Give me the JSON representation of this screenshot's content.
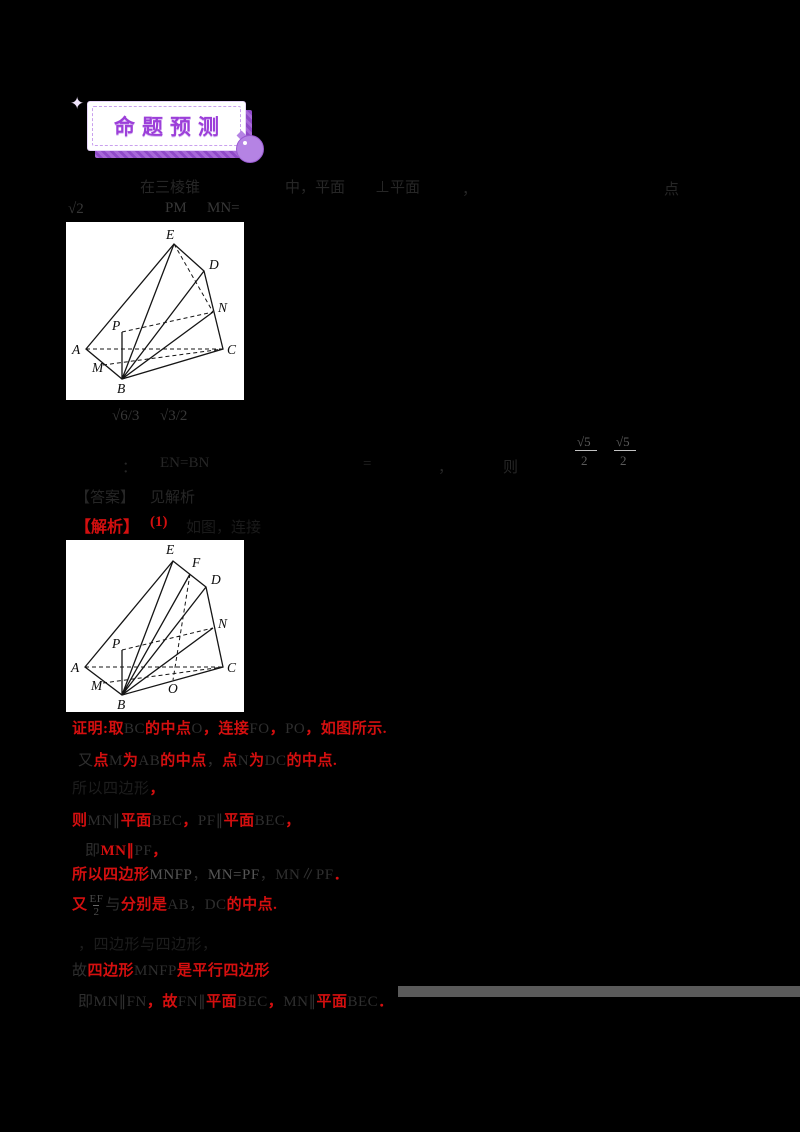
{
  "badge": {
    "title": "命题预测"
  },
  "fragments": [
    "在三棱锥",
    "中，平面",
    "⊥平面",
    "，",
    "点",
    "√2",
    "PM",
    "MN=",
    "√6/3",
    "√3/2",
    "：",
    "EN=BN",
    "=",
    "，",
    "则",
    "√5",
    "2",
    "√5",
    "2",
    "【答案】",
    "见解析",
    "如图，连接"
  ],
  "answer_header": {
    "tag": "【解析】",
    "part": "(1)"
  },
  "solution_lines": [
    [
      {
        "t": "证明:取",
        "c": "r"
      },
      {
        "t": "BC",
        "c": "d"
      },
      {
        "t": "的中点",
        "c": "r"
      },
      {
        "t": "O",
        "c": "d"
      },
      {
        "t": "，连接",
        "c": "r"
      },
      {
        "t": "FO",
        "c": "d"
      },
      {
        "t": "，",
        "c": "r"
      },
      {
        "t": "PO",
        "c": "d"
      },
      {
        "t": "，如图所示.",
        "c": "r"
      }
    ],
    [
      {
        "t": "又",
        "c": "d"
      },
      {
        "t": "点",
        "c": "r"
      },
      {
        "t": "M",
        "c": "d"
      },
      {
        "t": "为",
        "c": "r"
      },
      {
        "t": "AB",
        "c": "d"
      },
      {
        "t": "的中点",
        "c": "r"
      },
      {
        "t": "，",
        "c": "d"
      },
      {
        "t": "点",
        "c": "r"
      },
      {
        "t": "N",
        "c": "d"
      },
      {
        "t": "为",
        "c": "r"
      },
      {
        "t": "DC",
        "c": "d"
      },
      {
        "t": "的中点.",
        "c": "r"
      }
    ],
    [
      {
        "t": "所以四边形",
        "c": "k"
      },
      {
        "t": "，",
        "c": "r"
      }
    ],
    [
      {
        "t": "则",
        "c": "r"
      },
      {
        "t": "MN∥",
        "c": "d"
      },
      {
        "t": "平面",
        "c": "r"
      },
      {
        "t": "BEC",
        "c": "d"
      },
      {
        "t": "，",
        "c": "r"
      },
      {
        "t": "PF∥",
        "c": "d"
      },
      {
        "t": "平面",
        "c": "r"
      },
      {
        "t": "BEC",
        "c": "d"
      },
      {
        "t": "，",
        "c": "r"
      }
    ],
    [
      {
        "t": "即",
        "c": "d"
      },
      {
        "t": "MN∥",
        "c": "r"
      },
      {
        "t": "PF",
        "c": "d"
      },
      {
        "t": "，",
        "c": "r"
      }
    ],
    [
      {
        "t": "所以四边形",
        "c": "r"
      },
      {
        "t": "MNFP",
        "c": "g"
      },
      {
        "t": "，",
        "c": "d"
      },
      {
        "t": "MN=PF",
        "c": "g"
      },
      {
        "t": "，MN∥PF",
        "c": "d"
      },
      {
        "t": "．",
        "c": "r"
      }
    ],
    [
      {
        "t": "又",
        "c": "r"
      },
      {
        "t": "EF|2",
        "c": "frc"
      },
      {
        "t": "与",
        "c": "d"
      },
      {
        "t": "分别是",
        "c": "r"
      },
      {
        "t": "AB，DC",
        "c": "d"
      },
      {
        "t": "的中点.",
        "c": "r"
      }
    ],
    [
      {
        "t": "，四边形与四边形，",
        "c": "k"
      }
    ],
    [
      {
        "t": "故",
        "c": "d"
      },
      {
        "t": "四边形",
        "c": "r"
      },
      {
        "t": "MNFP",
        "c": "d"
      },
      {
        "t": "是平行四边形",
        "c": "r"
      }
    ],
    [
      {
        "t": "即MN∥FN",
        "c": "d"
      },
      {
        "t": "，",
        "c": "r"
      },
      {
        "t": "故",
        "c": "r"
      },
      {
        "t": "FN∥",
        "c": "d"
      },
      {
        "t": "平面",
        "c": "r"
      },
      {
        "t": "BEC",
        "c": "d"
      },
      {
        "t": "，",
        "c": "r"
      },
      {
        "t": "MN∥",
        "c": "d"
      },
      {
        "t": "平面",
        "c": "r"
      },
      {
        "t": "BEC",
        "c": "d"
      },
      {
        "t": "．",
        "c": "r"
      }
    ]
  ],
  "diagram1": {
    "labels": [
      "E",
      "D",
      "N",
      "P",
      "A",
      "C",
      "M",
      "B"
    ]
  },
  "diagram2": {
    "labels": [
      "E",
      "F",
      "D",
      "N",
      "P",
      "A",
      "C",
      "M",
      "O",
      "B"
    ]
  },
  "colors": {
    "accent_red": "#d40f0f",
    "badge_purple": "#9c3fd9"
  }
}
